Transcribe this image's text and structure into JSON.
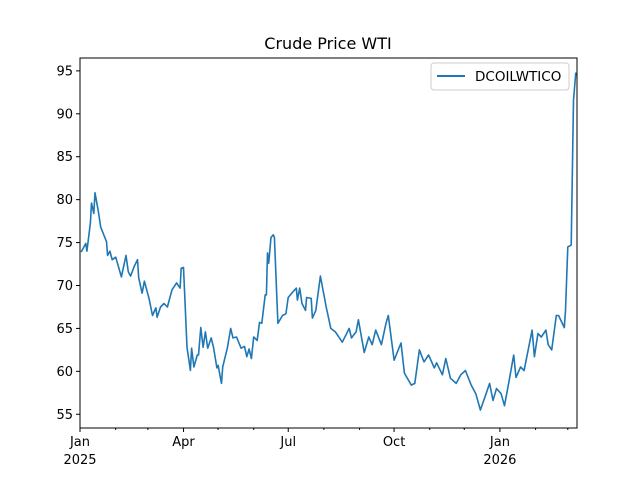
{
  "chart_data": {
    "type": "line",
    "title": "Crude Price WTI",
    "xlabel": "",
    "ylabel": "",
    "x_unit": "days since 2025-01-01",
    "xlim": [
      0,
      432
    ],
    "ylim": [
      53.4,
      96.5
    ],
    "grid": false,
    "legend_position": "top-right",
    "yticks": [
      55,
      60,
      65,
      70,
      75,
      80,
      85,
      90,
      95
    ],
    "xticks_major": [
      {
        "day": 0,
        "label": "Jan",
        "sublabel": "2025"
      },
      {
        "day": 90,
        "label": "Apr",
        "sublabel": ""
      },
      {
        "day": 181,
        "label": "Jul",
        "sublabel": ""
      },
      {
        "day": 273,
        "label": "Oct",
        "sublabel": ""
      },
      {
        "day": 365,
        "label": "Jan",
        "sublabel": "2026"
      }
    ],
    "xticks_minor": [
      31,
      59,
      120,
      151,
      212,
      243,
      304,
      334,
      396,
      424
    ],
    "series": [
      {
        "name": "DCOILWTICO",
        "color": "#1f77b4",
        "x": [
          1,
          5,
          6,
          9,
          10,
          12,
          13,
          16,
          18,
          23,
          24,
          26,
          28,
          31,
          36,
          40,
          42,
          44,
          47,
          50,
          51,
          54,
          56,
          60,
          63,
          66,
          67,
          70,
          73,
          76,
          80,
          84,
          87,
          88,
          90,
          93,
          96,
          97,
          99,
          102,
          103,
          105,
          107,
          109,
          111,
          114,
          116,
          119,
          120,
          123,
          124,
          128,
          131,
          133,
          136,
          140,
          143,
          145,
          147,
          149,
          151,
          154,
          156,
          158,
          161,
          162,
          163,
          164,
          166,
          168,
          169,
          172,
          176,
          179,
          181,
          184,
          188,
          189,
          191,
          193,
          196,
          197,
          201,
          202,
          205,
          209,
          214,
          218,
          222,
          228,
          234,
          236,
          240,
          242,
          247,
          251,
          254,
          257,
          262,
          266,
          268,
          273,
          279,
          282,
          288,
          291,
          295,
          299,
          303,
          308,
          310,
          315,
          318,
          322,
          327,
          331,
          335,
          340,
          344,
          348,
          353,
          356,
          359,
          362,
          366,
          369,
          373,
          377,
          379,
          383,
          386,
          390,
          393,
          395,
          398,
          401,
          405,
          407,
          410,
          414,
          416,
          421,
          422,
          424,
          427,
          429,
          431
        ],
        "values": [
          73.9,
          74.9,
          74.0,
          77.3,
          79.6,
          78.4,
          80.8,
          78.6,
          76.8,
          75.1,
          73.5,
          74.0,
          73.0,
          73.3,
          71.0,
          73.5,
          71.6,
          71.1,
          72.2,
          73.0,
          70.9,
          69.1,
          70.5,
          68.5,
          66.5,
          67.4,
          66.3,
          67.5,
          67.9,
          67.5,
          69.5,
          70.3,
          69.7,
          72.0,
          72.1,
          62.8,
          60.1,
          62.7,
          60.5,
          61.9,
          61.9,
          65.1,
          62.8,
          64.6,
          62.7,
          63.9,
          62.8,
          60.4,
          60.7,
          58.6,
          60.5,
          62.7,
          65.0,
          63.9,
          64.0,
          62.7,
          62.9,
          61.7,
          62.6,
          61.5,
          64.0,
          63.6,
          65.7,
          65.6,
          68.9,
          68.9,
          73.8,
          72.6,
          75.6,
          75.9,
          75.6,
          65.6,
          66.5,
          66.7,
          68.6,
          69.1,
          69.7,
          68.3,
          69.7,
          67.9,
          67.1,
          68.6,
          68.5,
          66.2,
          67.1,
          71.1,
          67.5,
          65.0,
          64.6,
          63.4,
          65.0,
          63.9,
          64.6,
          66.0,
          62.2,
          64.0,
          63.1,
          64.8,
          63.1,
          65.6,
          66.5,
          61.3,
          63.3,
          59.8,
          58.4,
          58.6,
          62.5,
          61.1,
          61.9,
          60.4,
          61.0,
          59.6,
          61.5,
          59.2,
          58.6,
          59.6,
          60.1,
          58.4,
          57.4,
          55.5,
          57.4,
          58.6,
          56.6,
          58.0,
          57.4,
          56.0,
          58.9,
          61.9,
          59.3,
          60.5,
          60.1,
          62.8,
          64.8,
          61.7,
          64.4,
          64.0,
          64.8,
          63.1,
          62.5,
          66.5,
          66.5,
          65.1,
          67.1,
          74.5,
          74.7,
          91.6,
          94.8
        ]
      }
    ]
  }
}
